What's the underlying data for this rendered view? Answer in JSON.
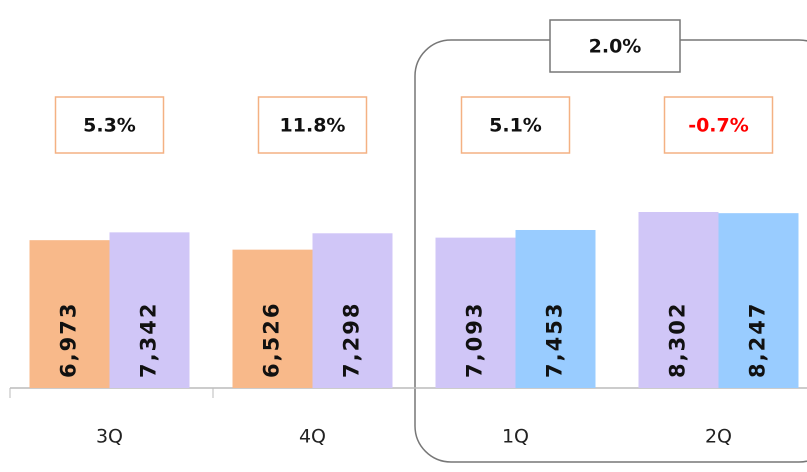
{
  "chart_data": {
    "type": "bar",
    "categories": [
      "3Q",
      "4Q",
      "1Q",
      "2Q"
    ],
    "series": [
      {
        "colors": [
          "#f8b98a",
          "#f8b98a",
          "#d0c6f7",
          "#d0c6f7"
        ],
        "values": [
          6973,
          6526,
          7093,
          8302
        ],
        "value_labels": [
          "6,973",
          "6,526",
          "7,093",
          "8,302"
        ]
      },
      {
        "colors": [
          "#d0c6f7",
          "#d0c6f7",
          "#99ccff",
          "#99ccff"
        ],
        "values": [
          7342,
          7298,
          7453,
          8247
        ],
        "value_labels": [
          "7,342",
          "7,298",
          "7,453",
          "8,247"
        ]
      }
    ],
    "growth": {
      "values": [
        5.3,
        11.8,
        5.1,
        -0.7
      ],
      "value_labels": [
        "5.3%",
        "11.8%",
        "5.1%",
        "-0.7%"
      ]
    },
    "group_growth": {
      "value": 2.0,
      "label": "2.0%"
    },
    "ylim": [
      0,
      10000
    ]
  }
}
